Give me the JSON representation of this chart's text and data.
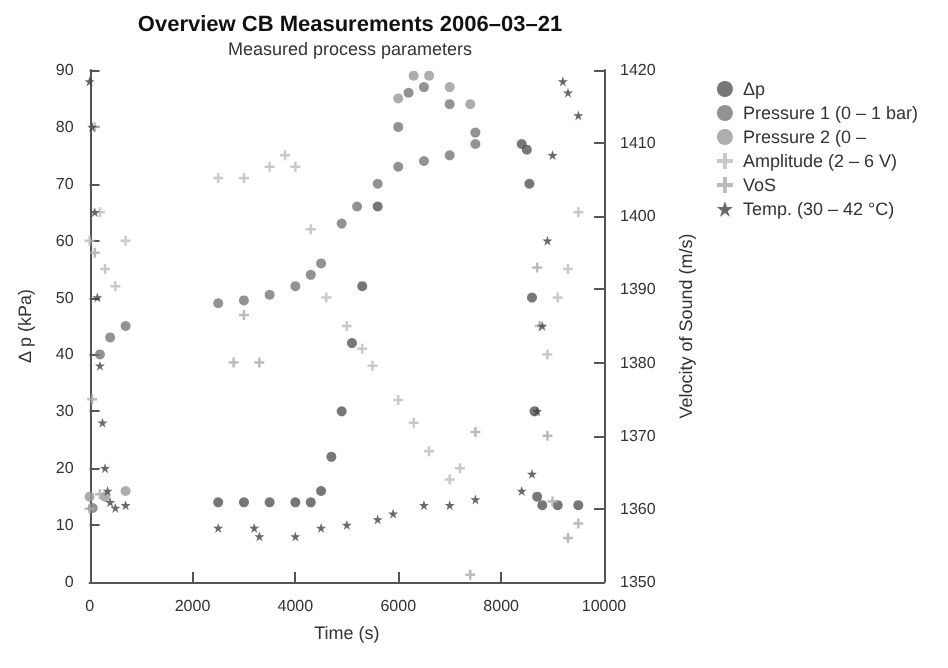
{
  "chart_data": {
    "type": "scatter",
    "title": "Overview CB Measurements 2006–03–21",
    "subtitle": "Measured process parameters",
    "xlabel": "Time (s)",
    "ylabel": "Δ p (kPa)",
    "y2label": "Velocity of Sound (m/s)",
    "xlim": [
      0,
      10000
    ],
    "xticks": [
      0,
      2000,
      4000,
      6000,
      8000,
      10000
    ],
    "ylim": [
      0,
      90
    ],
    "yticks": [
      0,
      10,
      20,
      30,
      40,
      50,
      60,
      70,
      80,
      90
    ],
    "y2lim": [
      1350,
      1420
    ],
    "y2ticks": [
      1350,
      1360,
      1370,
      1380,
      1390,
      1400,
      1410,
      1420
    ],
    "grid": false,
    "legend": "top right",
    "series": [
      {
        "name": "Δp",
        "color": "#555555",
        "marker": "circle",
        "x": [
          2500,
          3000,
          3500,
          4000,
          4300,
          4500,
          4700,
          4900,
          5100,
          5300,
          5600,
          8400,
          8500,
          8550,
          8600,
          8650,
          8700,
          8800,
          9100,
          9500
        ],
        "values": [
          14,
          14,
          14,
          14,
          14,
          16,
          22,
          30,
          42,
          52,
          66,
          77,
          76,
          70,
          50,
          30,
          15,
          13.5,
          13.5,
          13.5
        ]
      },
      {
        "name": "Pressure 1 (0 – 1 bar)",
        "color": "#777777",
        "marker": "circle",
        "x": [
          60,
          200,
          400,
          700,
          2500,
          3000,
          3500,
          4000,
          4300,
          4500,
          4900,
          5200,
          5600,
          6000,
          6500,
          7000,
          7500,
          6000,
          6200,
          6500,
          7000,
          7500
        ],
        "values": [
          13,
          40,
          43,
          45,
          49,
          49.5,
          50.5,
          52,
          54,
          56,
          63,
          66,
          70,
          73,
          74,
          75,
          77,
          80,
          86,
          87,
          84,
          79
        ]
      },
      {
        "name": "Pressure 2 (0 –",
        "color": "#999999",
        "marker": "circle",
        "x": [
          0,
          300,
          700,
          6000,
          6300,
          6600,
          7000,
          7400
        ],
        "values": [
          15,
          15,
          16,
          85,
          89,
          89,
          87,
          84
        ]
      },
      {
        "name": "Amplitude (2 – 6 V)",
        "color": "#bbbbbb",
        "marker": "cross",
        "x": [
          0,
          100,
          200,
          300,
          500,
          700,
          2500,
          3000,
          3500,
          3800,
          4000,
          4300,
          4600,
          5000,
          5300,
          5500,
          6000,
          6300,
          6600,
          7000,
          7200,
          8900,
          9100,
          9300,
          9500
        ],
        "values": [
          60,
          80,
          65,
          55,
          52,
          60,
          71,
          71,
          73,
          75,
          73,
          62,
          50,
          45,
          41,
          38,
          32,
          28,
          23,
          18,
          20,
          40,
          50,
          55,
          65
        ]
      },
      {
        "name": "VoS",
        "color": "#aaaaaa",
        "marker": "cross",
        "axis": "y2",
        "x": [
          0,
          50,
          100,
          200,
          2800,
          3000,
          3300,
          7400,
          7500,
          8700,
          8750,
          8900,
          9000,
          9300,
          9500
        ],
        "values": [
          1360,
          1375,
          1395,
          1362,
          1380,
          1386.5,
          1380,
          1351,
          1370.5,
          1393,
          1385,
          1370,
          1361,
          1356,
          1358
        ]
      },
      {
        "name": "Temp. (30 – 42 °C)",
        "color": "#444444",
        "marker": "star",
        "x": [
          0,
          50,
          100,
          150,
          200,
          250,
          300,
          350,
          400,
          500,
          700,
          2500,
          3200,
          3300,
          4000,
          4500,
          5000,
          5600,
          5900,
          6500,
          7000,
          7500,
          8400,
          8600,
          8700,
          8800,
          8900,
          9000,
          9200,
          9300,
          9500
        ],
        "values": [
          88,
          80,
          65,
          50,
          38,
          28,
          20,
          16,
          14,
          13,
          13.5,
          9.5,
          9.5,
          8,
          8,
          9.5,
          10,
          11,
          12,
          13.5,
          13.5,
          14.5,
          16,
          19,
          30,
          45,
          60,
          75,
          88,
          86,
          82
        ]
      }
    ]
  }
}
